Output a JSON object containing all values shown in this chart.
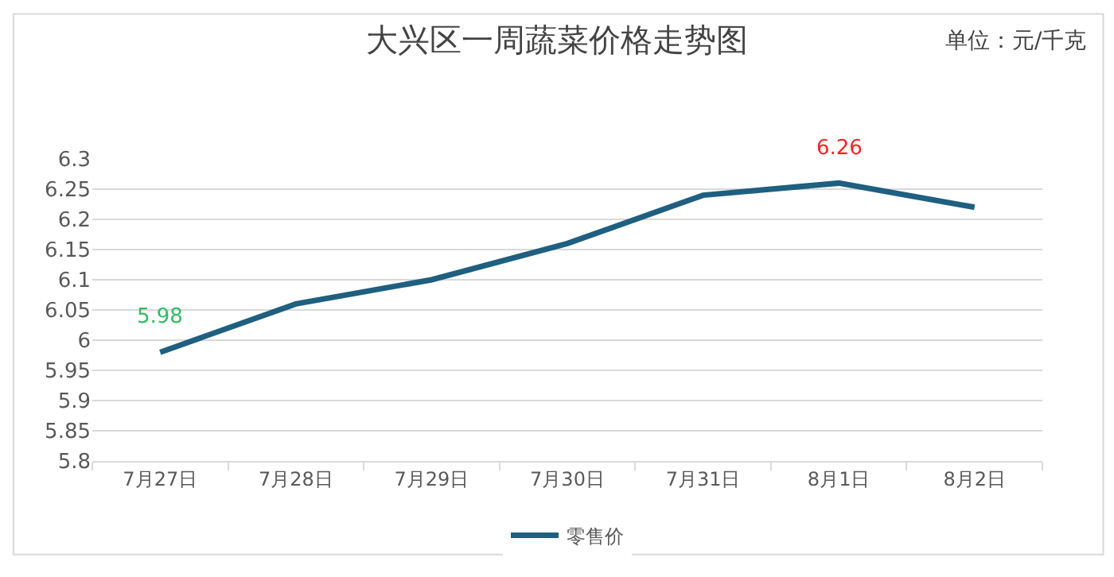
{
  "chart_data": {
    "type": "line",
    "title": "大兴区一周蔬菜价格走势图",
    "subtitle": "单位：元/千克",
    "categories": [
      "7月27日",
      "7月28日",
      "7月29日",
      "7月30日",
      "7月31日",
      "8月1日",
      "8月2日"
    ],
    "series": [
      {
        "name": "零售价",
        "color": "#1f5f7f",
        "values": [
          5.98,
          6.06,
          6.1,
          6.16,
          6.24,
          6.26,
          6.22
        ],
        "value_labels": [
          "5.98",
          null,
          null,
          null,
          null,
          "6.26",
          null
        ]
      }
    ],
    "ylim": [
      5.8,
      6.3
    ],
    "yticks": [
      5.8,
      5.85,
      5.9,
      5.95,
      6,
      6.05,
      6.1,
      6.15,
      6.2,
      6.25,
      6.3
    ],
    "grid": "y",
    "legend": "bottom",
    "marker": "none",
    "line_style": "solid"
  }
}
